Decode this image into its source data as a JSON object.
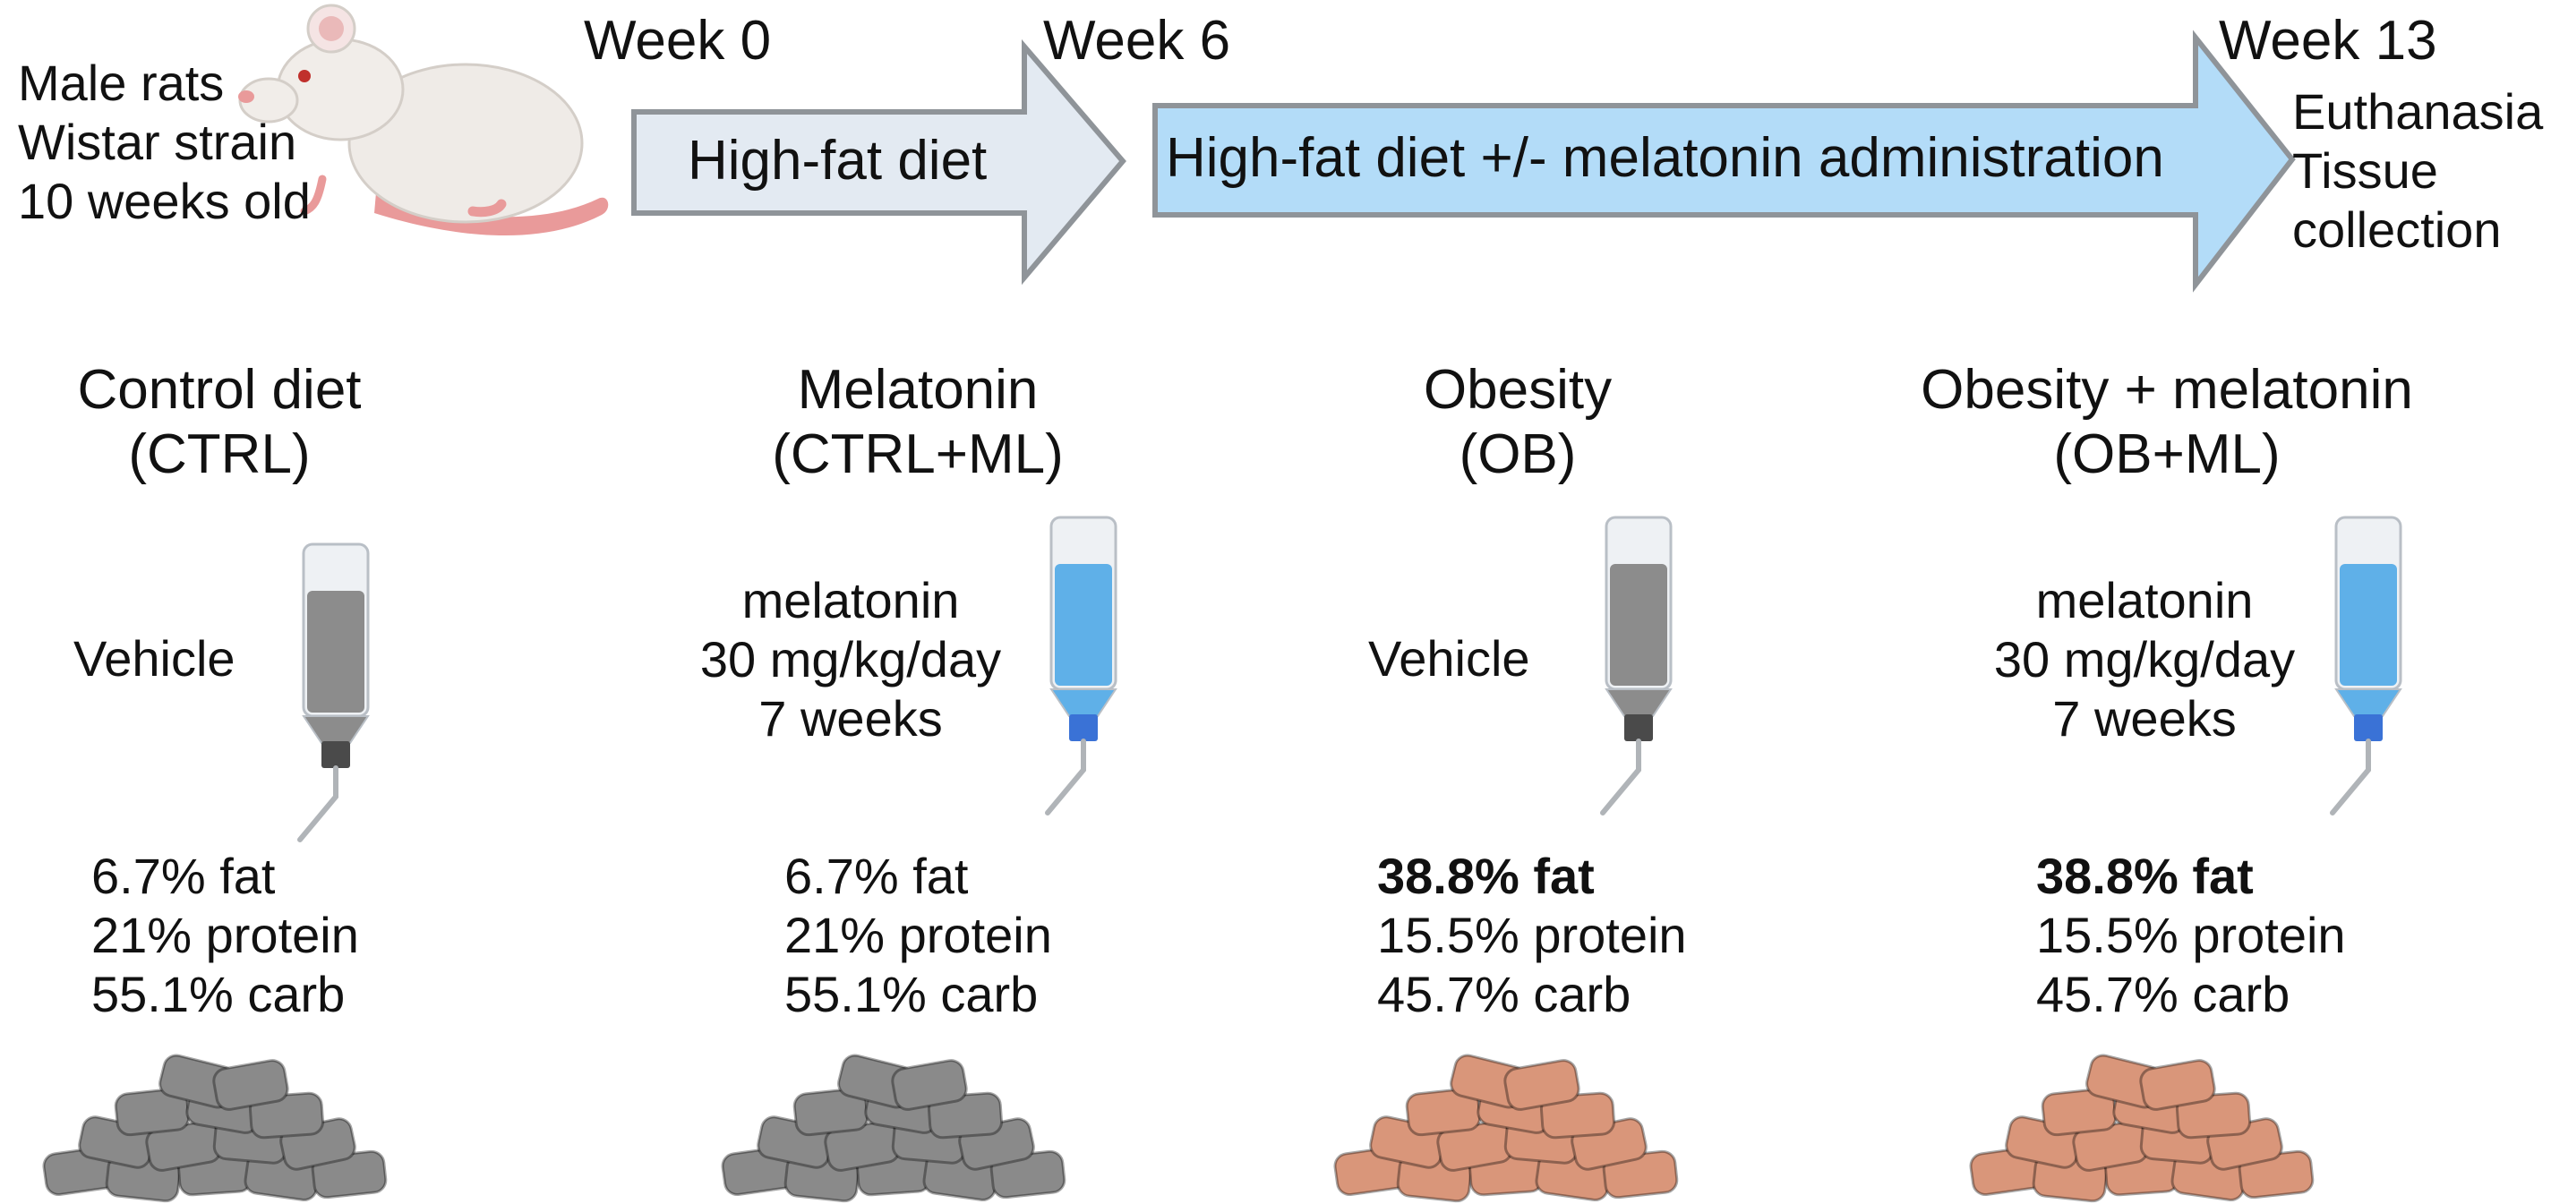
{
  "subjects": {
    "lines": [
      "Male rats",
      "Wistar strain",
      "10 weeks old"
    ]
  },
  "timeline": {
    "week_start": "Week 0",
    "week_mid": "Week 6",
    "week_end": "Week 13",
    "phase1_label": "High-fat diet",
    "phase2_label": "High-fat diet +/- melatonin administration",
    "end_steps": [
      "Euthanasia",
      "Tissue",
      "collection"
    ]
  },
  "colors": {
    "phase1_fill": "#e3eaf2",
    "phase2_fill": "#b3dcf8",
    "arrow_stroke": "#8f9499",
    "control_chow": "#8a8a8a",
    "hfd_chow": "#d9967a",
    "vehicle_liquid": "#8c8c8c",
    "melatonin_liquid": "#5fb0e8",
    "melatonin_cap": "#3a72d6",
    "vehicle_cap": "#4a4a4a"
  },
  "groups": [
    {
      "title": "Control diet",
      "code": "(CTRL)",
      "dose_lines": [
        "Vehicle"
      ],
      "bottle": "vehicle",
      "fat": "6.7% fat",
      "fat_bold": false,
      "protein": "21% protein",
      "carb": "55.1% carb",
      "chow": "control"
    },
    {
      "title": "Melatonin",
      "code": "(CTRL+ML)",
      "dose_lines": [
        "melatonin",
        "30 mg/kg/day",
        "7 weeks"
      ],
      "bottle": "melatonin",
      "fat": "6.7% fat",
      "fat_bold": false,
      "protein": "21% protein",
      "carb": "55.1% carb",
      "chow": "control"
    },
    {
      "title": "Obesity",
      "code": "(OB)",
      "dose_lines": [
        "Vehicle"
      ],
      "bottle": "vehicle",
      "fat": "38.8% fat",
      "fat_bold": true,
      "protein": "15.5% protein",
      "carb": "45.7% carb",
      "chow": "hfd"
    },
    {
      "title": "Obesity + melatonin",
      "code": "(OB+ML)",
      "dose_lines": [
        "melatonin",
        "30 mg/kg/day",
        "7 weeks"
      ],
      "bottle": "melatonin",
      "fat": "38.8% fat",
      "fat_bold": true,
      "protein": "15.5% protein",
      "carb": "45.7% carb",
      "chow": "hfd"
    }
  ]
}
